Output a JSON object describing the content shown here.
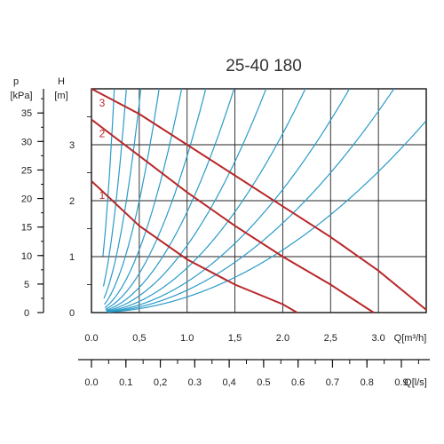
{
  "title": "25-40 180",
  "chart_data": {
    "type": "line",
    "title": "25-40 180",
    "xlabel": "Q[m³/h]",
    "xlabel_secondary": "Q[l/s]",
    "ylabel_left": "p",
    "ylabel_left_unit": "[kPa]",
    "ylabel_right": "H",
    "ylabel_right_unit": "[m]",
    "xlim": [
      0,
      3.5
    ],
    "ylim": [
      0,
      4
    ],
    "grid": true,
    "x_ticks": [
      "0.0",
      "0,5",
      "1.0",
      "1,5",
      "2.0",
      "2,5",
      "3.0"
    ],
    "x_tick_values": [
      0,
      0.5,
      1.0,
      1.5,
      2.0,
      2.5,
      3.0
    ],
    "h_ticks": [
      "0",
      "1",
      "2",
      "3"
    ],
    "h_tick_values": [
      0,
      1,
      2,
      3
    ],
    "p_ticks": [
      "0",
      "5",
      "10",
      "15",
      "20",
      "25",
      "30",
      "35"
    ],
    "p_tick_values": [
      0,
      5,
      10,
      15,
      20,
      25,
      30,
      35
    ],
    "ls_ticks": [
      "0.0",
      "0.1",
      "0,2",
      "0.3",
      "0,4",
      "0.5",
      "0.6",
      "0.7",
      "0.8",
      "0.9"
    ],
    "ls_tick_values": [
      0,
      0.1,
      0.2,
      0.3,
      0.4,
      0.5,
      0.6,
      0.7,
      0.8,
      0.9
    ],
    "series": [
      {
        "name": "1",
        "color": "#b8282a",
        "x": [
          0,
          0.5,
          1.0,
          1.5,
          2.0,
          2.15
        ],
        "y": [
          2.35,
          1.55,
          0.95,
          0.5,
          0.15,
          0
        ]
      },
      {
        "name": "2",
        "color": "#b8282a",
        "x": [
          0,
          0.5,
          1.0,
          1.5,
          2.0,
          2.5,
          2.95
        ],
        "y": [
          3.45,
          2.8,
          2.15,
          1.55,
          1.0,
          0.5,
          0
        ]
      },
      {
        "name": "3",
        "color": "#b8282a",
        "x": [
          0,
          0.5,
          1.0,
          1.5,
          2.0,
          2.5,
          3.0,
          3.5
        ],
        "y": [
          4.0,
          3.55,
          3.0,
          2.45,
          1.9,
          1.35,
          0.75,
          0.05
        ]
      }
    ],
    "system_curves": {
      "color": "#2a9bc8",
      "k": [
        70,
        30,
        15,
        8,
        4.5,
        2.8,
        1.8,
        1.2,
        0.8,
        0.55,
        0.4,
        0.28
      ]
    }
  }
}
